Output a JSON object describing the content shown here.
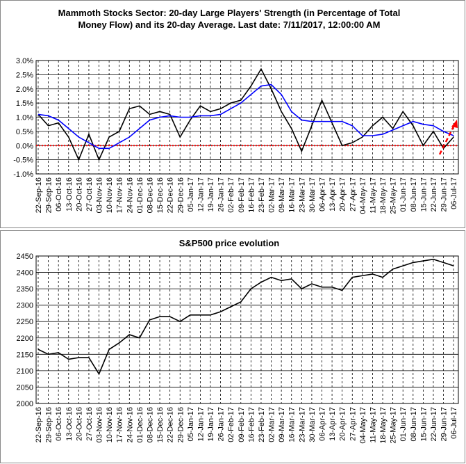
{
  "chart_data": [
    {
      "type": "line",
      "title": "Mammoth Stocks Sector: 20-day Large Players' Strength (in Percentage of Total Money Flow) and its 20-day Average. Last date: 7/11/2017, 12:00:00 AM",
      "categories": [
        "22-Sep-16",
        "29-Sep-16",
        "06-Oct-16",
        "13-Oct-16",
        "20-Oct-16",
        "27-Oct-16",
        "03-Nov-16",
        "10-Nov-16",
        "17-Nov-16",
        "24-Nov-16",
        "01-Dec-16",
        "08-Dec-16",
        "15-Dec-16",
        "22-Dec-16",
        "29-Dec-16",
        "05-Jan-17",
        "12-Jan-17",
        "19-Jan-17",
        "26-Jan-17",
        "02-Feb-17",
        "09-Feb-17",
        "16-Feb-17",
        "23-Feb-17",
        "02-Mar-17",
        "09-Mar-17",
        "16-Mar-17",
        "23-Mar-17",
        "30-Mar-17",
        "06-Apr-17",
        "13-Apr-17",
        "20-Apr-17",
        "27-Apr-17",
        "04-May-17",
        "11-May-17",
        "18-May-17",
        "25-May-17",
        "01-Jun-17",
        "08-Jun-17",
        "15-Jun-17",
        "22-Jun-17",
        "29-Jun-17",
        "06-Jul-17"
      ],
      "series": [
        {
          "color": "#000000",
          "values": [
            1.1,
            0.7,
            0.8,
            0.3,
            -0.5,
            0.4,
            -0.5,
            0.3,
            0.5,
            1.3,
            1.4,
            1.1,
            1.2,
            1.1,
            0.3,
            0.9,
            1.4,
            1.2,
            1.3,
            1.5,
            1.6,
            2.1,
            2.7,
            2.0,
            1.2,
            0.6,
            -0.2,
            0.7,
            1.6,
            0.8,
            0.0,
            0.1,
            0.3,
            0.7,
            1.0,
            0.6,
            1.2,
            0.7,
            0.0,
            0.5,
            -0.1,
            0.3
          ]
        },
        {
          "color": "#0000ff",
          "values": [
            1.1,
            1.05,
            0.9,
            0.6,
            0.3,
            0.1,
            -0.1,
            -0.1,
            0.1,
            0.3,
            0.6,
            0.9,
            1.0,
            1.05,
            1.0,
            1.0,
            1.05,
            1.05,
            1.1,
            1.3,
            1.5,
            1.8,
            2.1,
            2.15,
            1.8,
            1.2,
            0.9,
            0.85,
            0.85,
            0.85,
            0.85,
            0.7,
            0.35,
            0.35,
            0.4,
            0.55,
            0.7,
            0.85,
            0.75,
            0.7,
            0.5,
            0.35
          ]
        }
      ],
      "ylim": [
        -1,
        3
      ],
      "yticks": [
        {
          "value": -1,
          "label": "-1.0%"
        },
        {
          "value": -0.5,
          "label": "-0.5%"
        },
        {
          "value": 0,
          "label": "0.0%"
        },
        {
          "value": 0.5,
          "label": "0.5%"
        },
        {
          "value": 1,
          "label": "1.0%"
        },
        {
          "value": 1.5,
          "label": "1.5%"
        },
        {
          "value": 2,
          "label": "2.0%"
        },
        {
          "value": 2.5,
          "label": "2.5%"
        },
        {
          "value": 3,
          "label": "3.0%"
        }
      ],
      "hline": 0,
      "hline_color": "#ff0000",
      "grid": true
    },
    {
      "type": "line",
      "title": "S&P500 price evolution",
      "categories": [
        "22-Sep-16",
        "29-Sep-16",
        "06-Oct-16",
        "13-Oct-16",
        "20-Oct-16",
        "27-Oct-16",
        "03-Nov-16",
        "10-Nov-16",
        "17-Nov-16",
        "24-Nov-16",
        "01-Dec-16",
        "08-Dec-16",
        "15-Dec-16",
        "22-Dec-16",
        "29-Dec-16",
        "05-Jan-17",
        "12-Jan-17",
        "19-Jan-17",
        "26-Jan-17",
        "02-Feb-17",
        "09-Feb-17",
        "16-Feb-17",
        "23-Feb-17",
        "02-Mar-17",
        "09-Mar-17",
        "16-Mar-17",
        "23-Mar-17",
        "30-Mar-17",
        "06-Apr-17",
        "13-Apr-17",
        "20-Apr-17",
        "27-Apr-17",
        "04-May-17",
        "11-May-17",
        "18-May-17",
        "25-May-17",
        "01-Jun-17",
        "08-Jun-17",
        "15-Jun-17",
        "22-Jun-17",
        "29-Jun-17",
        "06-Jul-17"
      ],
      "series": [
        {
          "color": "#000000",
          "values": [
            2165,
            2150,
            2155,
            2135,
            2140,
            2140,
            2090,
            2165,
            2185,
            2210,
            2200,
            2255,
            2265,
            2265,
            2250,
            2270,
            2270,
            2270,
            2280,
            2295,
            2310,
            2350,
            2370,
            2385,
            2375,
            2380,
            2350,
            2365,
            2355,
            2355,
            2345,
            2385,
            2390,
            2395,
            2385,
            2410,
            2420,
            2430,
            2435,
            2440,
            2430,
            2420
          ]
        }
      ],
      "ylim": [
        2000,
        2450
      ],
      "yticks": [
        2000,
        2050,
        2100,
        2150,
        2200,
        2250,
        2300,
        2350,
        2400,
        2450
      ],
      "grid": true
    }
  ]
}
